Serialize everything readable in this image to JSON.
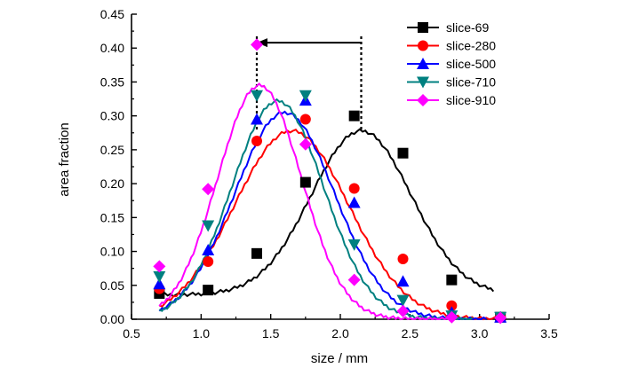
{
  "chart_data": {
    "type": "scatter",
    "title": "",
    "xlabel": "size / mm",
    "ylabel": "area fraction",
    "xlim": [
      0.5,
      3.5
    ],
    "ylim": [
      0.0,
      0.45
    ],
    "xticks": [
      "0.5",
      "1.0",
      "1.5",
      "2.0",
      "2.5",
      "3.0",
      "3.5"
    ],
    "yticks": [
      "0.00",
      "0.05",
      "0.10",
      "0.15",
      "0.20",
      "0.25",
      "0.30",
      "0.35",
      "0.40",
      "0.45"
    ],
    "grid": false,
    "legend_position": "top-right",
    "series": [
      {
        "name": "slice-69",
        "color": "#000000",
        "marker": "square",
        "points": [
          [
            0.7,
            0.038
          ],
          [
            1.05,
            0.043
          ],
          [
            1.4,
            0.097
          ],
          [
            1.75,
            0.202
          ],
          [
            2.1,
            0.3
          ],
          [
            2.45,
            0.245
          ],
          [
            2.8,
            0.058
          ],
          [
            3.15,
            0.003
          ]
        ],
        "fit": {
          "peak_x": 2.15,
          "peak_y": 0.278,
          "sigma": 0.36,
          "baseline": 0.036,
          "x_start": 0.7,
          "x_end": 3.1
        }
      },
      {
        "name": "slice-280",
        "color": "#ff0000",
        "marker": "circle",
        "points": [
          [
            0.7,
            0.045
          ],
          [
            1.05,
            0.085
          ],
          [
            1.4,
            0.263
          ],
          [
            1.75,
            0.295
          ],
          [
            2.1,
            0.193
          ],
          [
            2.45,
            0.089
          ],
          [
            2.8,
            0.02
          ],
          [
            3.15,
            0.003
          ]
        ],
        "fit": {
          "peak_x": 1.65,
          "peak_y": 0.278,
          "sigma": 0.41,
          "baseline": 0.0,
          "x_start": 0.7,
          "x_end": 3.15
        }
      },
      {
        "name": "slice-500",
        "color": "#0000ff",
        "marker": "triangle-up",
        "points": [
          [
            0.7,
            0.052
          ],
          [
            1.05,
            0.102
          ],
          [
            1.4,
            0.295
          ],
          [
            1.75,
            0.323
          ],
          [
            2.1,
            0.172
          ],
          [
            2.45,
            0.056
          ],
          [
            2.8,
            0.01
          ],
          [
            3.15,
            0.003
          ]
        ],
        "fit": {
          "peak_x": 1.6,
          "peak_y": 0.305,
          "sigma": 0.36,
          "baseline": 0.0,
          "x_start": 0.7,
          "x_end": 3.05
        }
      },
      {
        "name": "slice-710",
        "color": "#008080",
        "marker": "triangle-down",
        "points": [
          [
            0.7,
            0.063
          ],
          [
            1.05,
            0.138
          ],
          [
            1.4,
            0.33
          ],
          [
            1.75,
            0.33
          ],
          [
            2.1,
            0.11
          ],
          [
            2.45,
            0.028
          ],
          [
            2.8,
            0.005
          ],
          [
            3.15,
            0.003
          ]
        ],
        "fit": {
          "peak_x": 1.55,
          "peak_y": 0.322,
          "sigma": 0.33,
          "baseline": 0.0,
          "x_start": 0.7,
          "x_end": 2.95
        }
      },
      {
        "name": "slice-910",
        "color": "#ff00ff",
        "marker": "diamond",
        "points": [
          [
            0.7,
            0.078
          ],
          [
            1.05,
            0.192
          ],
          [
            1.4,
            0.405
          ],
          [
            1.75,
            0.258
          ],
          [
            2.1,
            0.058
          ],
          [
            2.45,
            0.012
          ],
          [
            2.8,
            0.003
          ],
          [
            3.15,
            0.002
          ]
        ],
        "fit": {
          "peak_x": 1.42,
          "peak_y": 0.345,
          "sigma": 0.3,
          "baseline": 0.0,
          "x_start": 0.7,
          "x_end": 2.8
        }
      }
    ],
    "annotations": [
      {
        "type": "dashed-vline",
        "x": 1.4,
        "y_from": 0.28,
        "y_to": 0.42
      },
      {
        "type": "dashed-vline",
        "x": 2.15,
        "y_from": 0.28,
        "y_to": 0.42
      },
      {
        "type": "arrow",
        "from": [
          2.15,
          0.408
        ],
        "to": [
          1.4,
          0.408
        ],
        "color": "#000000"
      }
    ]
  }
}
